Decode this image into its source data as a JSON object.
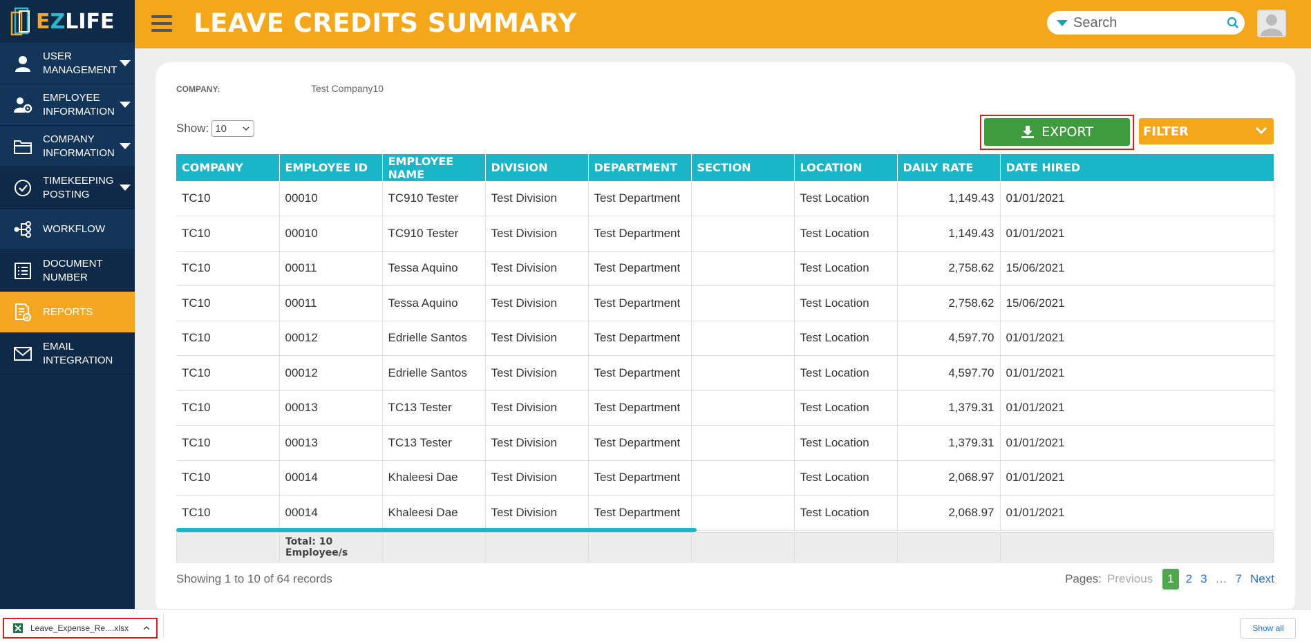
{
  "app": {
    "logo_text_e": "E",
    "logo_text_z": "Z",
    "logo_text_rest": "LIFE"
  },
  "sidebar": {
    "items": [
      {
        "label": "User Management",
        "icon": "user-icon",
        "has_caret": true
      },
      {
        "label": "Employee Information",
        "icon": "employee-gear-icon",
        "has_caret": true
      },
      {
        "label": "Company Information",
        "icon": "folder-icon",
        "has_caret": true
      },
      {
        "label": "Timekeeping Posting",
        "icon": "check-circle-icon",
        "has_caret": true
      },
      {
        "label": "Workflow",
        "icon": "workflow-icon",
        "has_caret": false
      },
      {
        "label": "Document Number",
        "icon": "list-icon",
        "has_caret": false
      },
      {
        "label": "Reports",
        "icon": "report-icon",
        "has_caret": false,
        "active": true
      },
      {
        "label": "Email Integration",
        "icon": "mail-icon",
        "has_caret": false
      }
    ]
  },
  "header": {
    "title": "LEAVE CREDITS SUMMARY",
    "search_placeholder": "Search"
  },
  "filters": {
    "company_label": "COMPANY:",
    "company_value": "Test Company10",
    "show_label": "Show:",
    "show_value": "10",
    "export_label": "EXPORT",
    "filter_label": "FILTER"
  },
  "table": {
    "columns": [
      "Company",
      "Employee ID",
      "Employee Name",
      "Division",
      "Department",
      "Section",
      "Location",
      "Daily Rate",
      "Date Hired"
    ],
    "rows": [
      [
        "TC10",
        "00010",
        "TC910 Tester",
        "Test Division",
        "Test Department",
        "",
        "Test Location",
        "1,149.43",
        "01/01/2021"
      ],
      [
        "TC10",
        "00010",
        "TC910 Tester",
        "Test Division",
        "Test Department",
        "",
        "Test Location",
        "1,149.43",
        "01/01/2021"
      ],
      [
        "TC10",
        "00011",
        "Tessa Aquino",
        "Test Division",
        "Test Department",
        "",
        "Test Location",
        "2,758.62",
        "15/06/2021"
      ],
      [
        "TC10",
        "00011",
        "Tessa Aquino",
        "Test Division",
        "Test Department",
        "",
        "Test Location",
        "2,758.62",
        "15/06/2021"
      ],
      [
        "TC10",
        "00012",
        "Edrielle Santos",
        "Test Division",
        "Test Department",
        "",
        "Test Location",
        "4,597.70",
        "01/01/2021"
      ],
      [
        "TC10",
        "00012",
        "Edrielle Santos",
        "Test Division",
        "Test Department",
        "",
        "Test Location",
        "4,597.70",
        "01/01/2021"
      ],
      [
        "TC10",
        "00013",
        "TC13 Tester",
        "Test Division",
        "Test Department",
        "",
        "Test Location",
        "1,379.31",
        "01/01/2021"
      ],
      [
        "TC10",
        "00013",
        "TC13 Tester",
        "Test Division",
        "Test Department",
        "",
        "Test Location",
        "1,379.31",
        "01/01/2021"
      ],
      [
        "TC10",
        "00014",
        "Khaleesi Dae",
        "Test Division",
        "Test Department",
        "",
        "Test Location",
        "2,068.97",
        "01/01/2021"
      ],
      [
        "TC10",
        "00014",
        "Khaleesi Dae",
        "Test Division",
        "Test Department",
        "",
        "Test Location",
        "2,068.97",
        "01/01/2021"
      ]
    ],
    "total_text": "Total: 10 Employee/s"
  },
  "pagination": {
    "showing_text": "Showing 1 to 10 of 64 records",
    "pages_label": "Pages:",
    "previous": "Previous",
    "pages": [
      "1",
      "2",
      "3"
    ],
    "ellipsis": "…",
    "last_page": "7",
    "next": "Next",
    "current": "1"
  },
  "download_bar": {
    "file_name": "Leave_Expense_Re....xlsx",
    "show_all": "Show all"
  },
  "colors": {
    "sidebar_bg": "#0e2a48",
    "header_bg": "#f5a71c",
    "table_header": "#1bb5c8",
    "export_green": "#3f9c3e",
    "highlight_red": "#e01b1b"
  }
}
